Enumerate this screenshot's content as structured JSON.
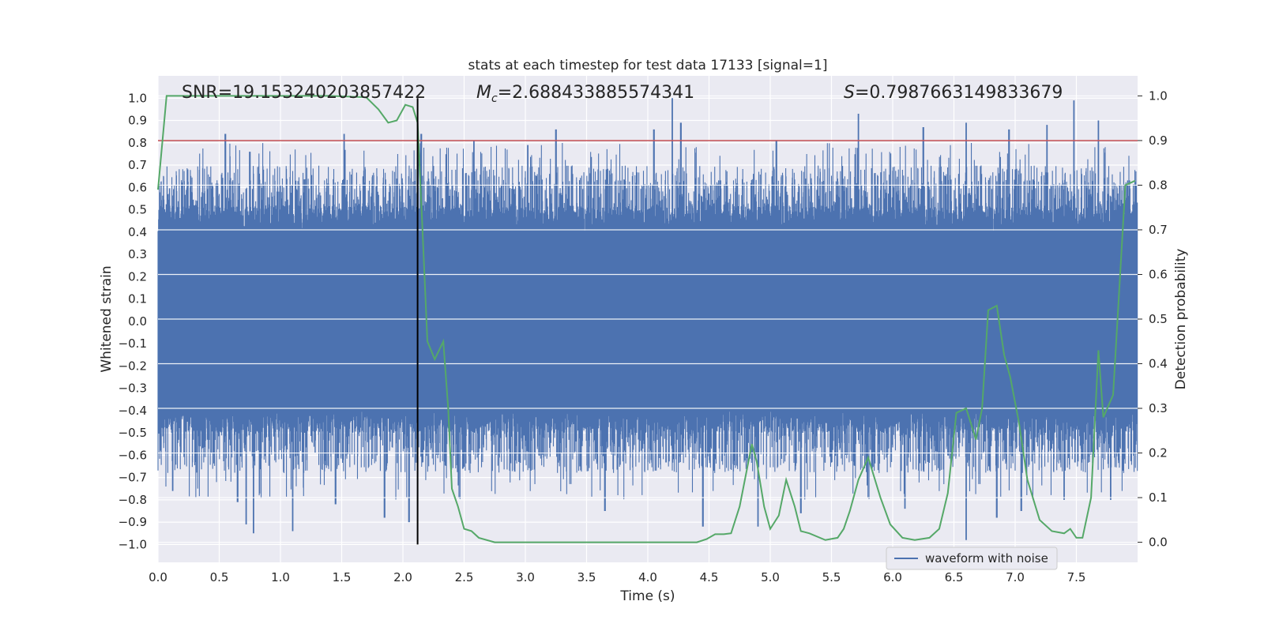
{
  "chart_data": {
    "type": "line",
    "title": "stats at each timestep for test data 17133 [signal=1]",
    "xlabel": "Time (s)",
    "ylabel_left": "Whitened strain",
    "ylabel_right": "Detection probability",
    "xlim": [
      0.0,
      8.0
    ],
    "ylim_left": [
      -1.08,
      1.1
    ],
    "ylim_right": [
      -0.045,
      1.045
    ],
    "x_ticks": [
      0.0,
      0.5,
      1.0,
      1.5,
      2.0,
      2.5,
      3.0,
      3.5,
      4.0,
      4.5,
      5.0,
      5.5,
      6.0,
      6.5,
      7.0,
      7.5
    ],
    "x_tick_labels": [
      "0.0",
      "0.5",
      "1.0",
      "1.5",
      "2.0",
      "2.5",
      "3.0",
      "3.5",
      "4.0",
      "4.5",
      "5.0",
      "5.5",
      "6.0",
      "6.5",
      "7.0",
      "7.5"
    ],
    "y_left_ticks": [
      -1.0,
      -0.9,
      -0.8,
      -0.7,
      -0.6,
      -0.5,
      -0.4,
      -0.3,
      -0.2,
      -0.1,
      0.0,
      0.1,
      0.2,
      0.3,
      0.4,
      0.5,
      0.6,
      0.7,
      0.8,
      0.9,
      1.0
    ],
    "y_left_tick_labels": [
      "−1.0",
      "−0.9",
      "−0.8",
      "−0.7",
      "−0.6",
      "−0.5",
      "−0.4",
      "−0.3",
      "−0.2",
      "−0.1",
      "0.0",
      "0.1",
      "0.2",
      "0.3",
      "0.4",
      "0.5",
      "0.6",
      "0.7",
      "0.8",
      "0.9",
      "1.0"
    ],
    "y_right_ticks": [
      0.0,
      0.1,
      0.2,
      0.3,
      0.4,
      0.5,
      0.6,
      0.7,
      0.8,
      0.9,
      1.0
    ],
    "y_right_tick_labels": [
      "0.0",
      "0.1",
      "0.2",
      "0.3",
      "0.4",
      "0.5",
      "0.6",
      "0.7",
      "0.8",
      "0.9",
      "1.0"
    ],
    "stats_text": {
      "snr": "SNR=19.153240203857422",
      "mc_symbol": "M",
      "mc_sub": "c",
      "mc_value": "=2.688433885574341",
      "s_symbol": "S",
      "s_value": "=0.7987663149833679"
    },
    "threshold": {
      "axis": "right",
      "value": 0.9,
      "color": "#c44e52"
    },
    "marker_line": {
      "x": 2.12,
      "y_range": [
        -1.0,
        1.0
      ],
      "color": "#000000"
    },
    "series": [
      {
        "name": "waveform with noise",
        "axis": "left",
        "color": "#4c72b0",
        "style": "dense-noise",
        "description_values": {
          "core_band": [
            -0.38,
            0.4
          ],
          "typical_peaks": [
            0.45,
            0.7
          ],
          "extreme_high": [
            [
              0.55,
              0.84
            ],
            [
              0.75,
              0.76
            ],
            [
              1.52,
              0.84
            ],
            [
              2.15,
              0.84
            ],
            [
              2.58,
              0.81
            ],
            [
              3.02,
              0.79
            ],
            [
              3.25,
              0.86
            ],
            [
              4.05,
              0.86
            ],
            [
              4.2,
              1.0
            ],
            [
              4.27,
              0.89
            ],
            [
              5.05,
              0.81
            ],
            [
              5.72,
              0.93
            ],
            [
              6.25,
              0.87
            ],
            [
              6.6,
              0.89
            ],
            [
              6.95,
              0.86
            ],
            [
              7.26,
              0.88
            ],
            [
              7.48,
              0.99
            ],
            [
              7.68,
              0.9
            ]
          ],
          "extreme_low": [
            [
              0.12,
              -0.76
            ],
            [
              0.65,
              -0.81
            ],
            [
              0.72,
              -0.91
            ],
            [
              0.78,
              -0.95
            ],
            [
              1.1,
              -0.94
            ],
            [
              1.45,
              -0.82
            ],
            [
              1.85,
              -0.88
            ],
            [
              2.05,
              -0.9
            ],
            [
              3.65,
              -0.85
            ],
            [
              4.45,
              -0.92
            ],
            [
              4.9,
              -0.92
            ],
            [
              5.25,
              -0.86
            ],
            [
              6.1,
              -0.84
            ],
            [
              6.6,
              -0.98
            ],
            [
              6.85,
              -0.88
            ],
            [
              7.05,
              -0.85
            ],
            [
              7.4,
              -0.8
            ],
            [
              7.78,
              -0.8
            ]
          ]
        }
      },
      {
        "name": "detection probability",
        "axis": "right",
        "color": "#55a868",
        "x": [
          0.0,
          0.07,
          0.15,
          0.3,
          0.6,
          1.0,
          1.4,
          1.7,
          1.8,
          1.88,
          1.95,
          2.02,
          2.08,
          2.12,
          2.16,
          2.2,
          2.26,
          2.33,
          2.37,
          2.4,
          2.45,
          2.5,
          2.56,
          2.62,
          2.75,
          3.0,
          3.5,
          4.0,
          4.25,
          4.4,
          4.48,
          4.55,
          4.62,
          4.68,
          4.75,
          4.85,
          4.89,
          4.95,
          5.0,
          5.07,
          5.13,
          5.2,
          5.25,
          5.32,
          5.45,
          5.55,
          5.6,
          5.65,
          5.72,
          5.8,
          5.9,
          5.98,
          6.08,
          6.18,
          6.3,
          6.38,
          6.45,
          6.52,
          6.6,
          6.68,
          6.73,
          6.78,
          6.85,
          6.91,
          6.96,
          7.03,
          7.1,
          7.2,
          7.3,
          7.4,
          7.45,
          7.5,
          7.55,
          7.62,
          7.68,
          7.72,
          7.8,
          7.9,
          7.98
        ],
        "y": [
          0.79,
          1.0,
          1.0,
          1.0,
          1.0,
          1.0,
          1.0,
          0.997,
          0.97,
          0.94,
          0.945,
          0.98,
          0.975,
          0.94,
          0.7,
          0.45,
          0.41,
          0.45,
          0.3,
          0.12,
          0.08,
          0.03,
          0.025,
          0.01,
          0.0,
          0.0,
          0.0,
          0.0,
          0.0,
          0.0,
          0.007,
          0.018,
          0.018,
          0.02,
          0.08,
          0.22,
          0.18,
          0.08,
          0.03,
          0.06,
          0.14,
          0.08,
          0.025,
          0.02,
          0.005,
          0.01,
          0.03,
          0.07,
          0.14,
          0.19,
          0.1,
          0.04,
          0.01,
          0.005,
          0.01,
          0.03,
          0.11,
          0.29,
          0.3,
          0.23,
          0.3,
          0.52,
          0.53,
          0.42,
          0.37,
          0.27,
          0.14,
          0.05,
          0.025,
          0.02,
          0.03,
          0.01,
          0.01,
          0.1,
          0.43,
          0.28,
          0.33,
          0.8,
          0.81
        ]
      }
    ],
    "legend": {
      "location": "lower-right",
      "entries": [
        "waveform with noise"
      ]
    }
  },
  "colors": {
    "background": "#ffffff",
    "plot_background": "#eaeaf2",
    "grid": "#ffffff",
    "waveform": "#4c72b0",
    "probability": "#55a868",
    "threshold": "#c44e52",
    "marker": "#000000"
  }
}
